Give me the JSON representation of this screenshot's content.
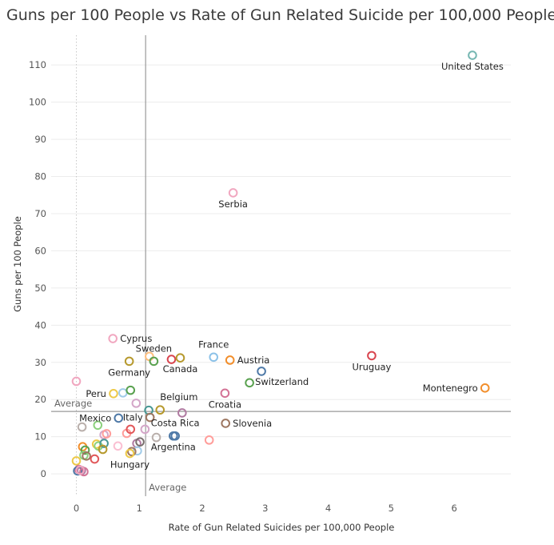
{
  "chart_data": {
    "type": "scatter",
    "title": "Guns per 100 People vs Rate of Gun Related Suicide per 100,000 People",
    "xlabel": "Rate of Gun Related Suicides per 100,000 People",
    "ylabel": "Guns per 100 People",
    "xlim": [
      -0.4,
      6.9
    ],
    "ylim": [
      -6,
      118
    ],
    "x_ticks": [
      "0",
      "1",
      "2",
      "3",
      "4",
      "5",
      "6"
    ],
    "y_ticks": [
      "0",
      "10",
      "20",
      "30",
      "40",
      "50",
      "60",
      "70",
      "80",
      "90",
      "100",
      "110"
    ],
    "grid": true,
    "reference_lines": {
      "x_average": {
        "value": 1.1,
        "label": "Average"
      },
      "y_average": {
        "value": 16.8,
        "label": "Average"
      }
    },
    "labeled_points": [
      {
        "label": "United States",
        "x": 6.29,
        "y": 112.6,
        "color": "#76b7b2",
        "label_pos": "below"
      },
      {
        "label": "Serbia",
        "x": 2.49,
        "y": 75.6,
        "color": "#f1a7c0",
        "label_pos": "below"
      },
      {
        "label": "Cyprus",
        "x": 0.58,
        "y": 36.4,
        "color": "#f1a7c0",
        "label_pos": "right"
      },
      {
        "label": "Sweden",
        "x": 1.23,
        "y": 30.3,
        "color": "#59a14f",
        "label_pos": "above"
      },
      {
        "label": "Germany",
        "x": 0.84,
        "y": 30.3,
        "color": "#b6992d",
        "label_pos": "below"
      },
      {
        "label": "Canada",
        "x": 1.65,
        "y": 31.2,
        "color": "#b6992d",
        "label_pos": "below"
      },
      {
        "label": "France",
        "x": 2.18,
        "y": 31.4,
        "color": "#8cc2e8",
        "label_pos": "above"
      },
      {
        "label": "Austria",
        "x": 2.44,
        "y": 30.6,
        "color": "#f28e2b",
        "label_pos": "right"
      },
      {
        "label": "Switzerland",
        "x": 2.94,
        "y": 27.6,
        "color": "#4e79a7",
        "label_pos": "below-right"
      },
      {
        "label": "Uruguay",
        "x": 4.69,
        "y": 31.8,
        "color": "#d9454f",
        "label_pos": "below"
      },
      {
        "label": "Montenegro",
        "x": 6.49,
        "y": 23.1,
        "color": "#f28e2b",
        "label_pos": "left"
      },
      {
        "label": "Peru",
        "x": 0.59,
        "y": 21.6,
        "color": "#edc948",
        "label_pos": "left"
      },
      {
        "label": "Belgium",
        "x": 1.33,
        "y": 17.2,
        "color": "#b6992d",
        "label_pos": "above-right"
      },
      {
        "label": "Croatia",
        "x": 2.36,
        "y": 21.7,
        "color": "#d37295",
        "label_pos": "below"
      },
      {
        "label": "Mexico",
        "x": 0.67,
        "y": 15.0,
        "color": "#4e79a7",
        "label_pos": "left"
      },
      {
        "label": "Italy",
        "x": 1.17,
        "y": 15.2,
        "color": "#9d7660",
        "label_pos": "left"
      },
      {
        "label": "Costa Rica",
        "x": 1.57,
        "y": 10.2,
        "color": "#4e79a7",
        "label_pos": "above"
      },
      {
        "label": "Slovenia",
        "x": 2.37,
        "y": 13.6,
        "color": "#9d7660",
        "label_pos": "right"
      },
      {
        "label": "Argentina",
        "x": 1.54,
        "y": 10.2,
        "color": "#4e79a7",
        "label_pos": "below"
      },
      {
        "label": "Hungary",
        "x": 0.85,
        "y": 5.5,
        "color": "#edc948",
        "label_pos": "below"
      }
    ],
    "other_points": [
      {
        "x": 0.0,
        "y": 24.9,
        "color": "#f1a7c0"
      },
      {
        "x": 0.74,
        "y": 21.8,
        "color": "#a0cbe8"
      },
      {
        "x": 0.86,
        "y": 22.5,
        "color": "#59a14f"
      },
      {
        "x": 0.95,
        "y": 19.0,
        "color": "#d4a6c8"
      },
      {
        "x": 1.16,
        "y": 31.6,
        "color": "#ffbe7d"
      },
      {
        "x": 1.51,
        "y": 30.8,
        "color": "#d9454f"
      },
      {
        "x": 1.15,
        "y": 17.1,
        "color": "#499894"
      },
      {
        "x": 1.68,
        "y": 16.4,
        "color": "#b07aa1"
      },
      {
        "x": 2.75,
        "y": 24.5,
        "color": "#59a14f"
      },
      {
        "x": 0.09,
        "y": 12.6,
        "color": "#bab0ac"
      },
      {
        "x": 0.34,
        "y": 13.1,
        "color": "#8cd17d"
      },
      {
        "x": 0.44,
        "y": 10.5,
        "color": "#d4a6c8"
      },
      {
        "x": 0.48,
        "y": 10.8,
        "color": "#ff9d9a"
      },
      {
        "x": 0.8,
        "y": 10.9,
        "color": "#ff9d9a"
      },
      {
        "x": 0.86,
        "y": 12.0,
        "color": "#e15759"
      },
      {
        "x": 1.09,
        "y": 12.0,
        "color": "#d4a6c8"
      },
      {
        "x": 0.96,
        "y": 8.2,
        "color": "#b07aa1"
      },
      {
        "x": 1.01,
        "y": 8.6,
        "color": "#79706e"
      },
      {
        "x": 1.27,
        "y": 9.8,
        "color": "#bab0ac"
      },
      {
        "x": 2.11,
        "y": 9.1,
        "color": "#ff9d9a"
      },
      {
        "x": 0.32,
        "y": 8.0,
        "color": "#edc948"
      },
      {
        "x": 0.35,
        "y": 7.5,
        "color": "#8cd17d"
      },
      {
        "x": 0.44,
        "y": 8.2,
        "color": "#499894"
      },
      {
        "x": 0.42,
        "y": 6.6,
        "color": "#b6992d"
      },
      {
        "x": 0.66,
        "y": 7.5,
        "color": "#fabfd2"
      },
      {
        "x": 0.97,
        "y": 6.2,
        "color": "#a0cbe8"
      },
      {
        "x": 0.88,
        "y": 6.0,
        "color": "#9d7660"
      },
      {
        "x": 0.1,
        "y": 7.3,
        "color": "#f28e2b"
      },
      {
        "x": 0.14,
        "y": 6.4,
        "color": "#59a14f"
      },
      {
        "x": 0.12,
        "y": 5.0,
        "color": "#8cd17d"
      },
      {
        "x": 0.16,
        "y": 4.8,
        "color": "#9d7660"
      },
      {
        "x": 0.29,
        "y": 4.0,
        "color": "#e15759"
      },
      {
        "x": 0.0,
        "y": 3.5,
        "color": "#edc948"
      },
      {
        "x": 0.04,
        "y": 1.2,
        "color": "#d37295"
      },
      {
        "x": 0.02,
        "y": 0.8,
        "color": "#4e79a7"
      },
      {
        "x": 0.08,
        "y": 0.9,
        "color": "#b07aa1"
      },
      {
        "x": 0.12,
        "y": 0.6,
        "color": "#d37295"
      },
      {
        "x": 0.06,
        "y": 1.0,
        "color": "#f1a7c0"
      }
    ]
  }
}
